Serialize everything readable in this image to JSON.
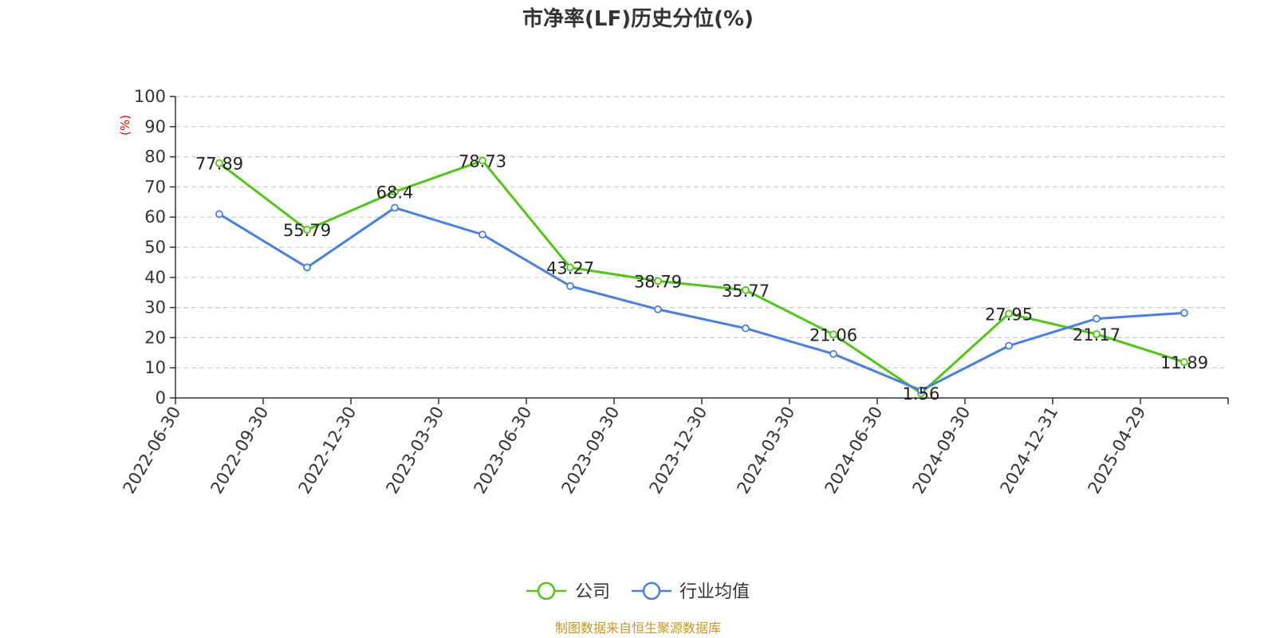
{
  "chart_data": {
    "type": "line",
    "title": "市净率(LF)历史分位(%)",
    "ylabel": "(%)",
    "ylim": [
      0,
      100
    ],
    "yticks": [
      0,
      10,
      20,
      30,
      40,
      50,
      60,
      70,
      80,
      90,
      100
    ],
    "grid": true,
    "legend_position": "bottom",
    "categories": [
      "2022-06-30",
      "2022-09-30",
      "2022-12-30",
      "2023-03-30",
      "2023-06-30",
      "2023-09-30",
      "2023-12-30",
      "2024-03-30",
      "2024-06-30",
      "2024-09-30",
      "2024-12-31",
      "2025-04-29"
    ],
    "series": [
      {
        "name": "公司",
        "color": "#52c41a",
        "show_labels": true,
        "values": [
          77.89,
          55.79,
          68.4,
          78.73,
          43.27,
          38.79,
          35.77,
          21.06,
          1.56,
          27.95,
          21.17,
          11.89
        ],
        "labels": [
          "77.89",
          "55.79",
          "68.4",
          "78.73",
          "43.27",
          "38.79",
          "35.77",
          "21.06",
          "1.56",
          "27.95",
          "21.17",
          "11.89"
        ]
      },
      {
        "name": "行业均值",
        "color": "#4a7fdc",
        "show_labels": false,
        "values": [
          61.0,
          43.3,
          63.1,
          54.2,
          37.1,
          29.4,
          23.1,
          14.6,
          2.5,
          17.3,
          26.3,
          28.2
        ]
      }
    ],
    "source": "制图数据来自恒生聚源数据库",
    "colors": {
      "axis": "#333333",
      "grid": "#cccccc",
      "ylabel": "#ff0000",
      "source": "#c8962d"
    }
  }
}
